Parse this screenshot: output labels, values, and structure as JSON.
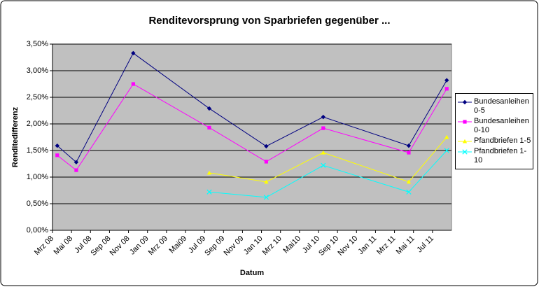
{
  "chart_data": {
    "type": "line",
    "title": "Renditevorsprung von Sparbriefen gegenüber ...",
    "x_label": "Datum",
    "y_label": "Renditedifferenz",
    "x": [
      "2008-03",
      "2008-05",
      "2008-11",
      "2009-07",
      "2010-01",
      "2010-07",
      "2011-04",
      "2011-08"
    ],
    "xlim": [
      "2008-03",
      "2011-09"
    ],
    "xticks": [
      {
        "value": "2008-03",
        "label": "Mrz 08"
      },
      {
        "value": "2008-05",
        "label": "Mai 08"
      },
      {
        "value": "2008-07",
        "label": "Jul 08"
      },
      {
        "value": "2008-09",
        "label": "Sep 08"
      },
      {
        "value": "2008-11",
        "label": "Nov 08"
      },
      {
        "value": "2009-01",
        "label": "Jan 09"
      },
      {
        "value": "2009-03",
        "label": "Mrz 09"
      },
      {
        "value": "2009-05",
        "label": "Mai09"
      },
      {
        "value": "2009-07",
        "label": "Jul 09"
      },
      {
        "value": "2009-09",
        "label": "Sep 09"
      },
      {
        "value": "2009-11",
        "label": "Nov 09"
      },
      {
        "value": "2010-01",
        "label": "Jan 10"
      },
      {
        "value": "2010-03",
        "label": "Mrz 10"
      },
      {
        "value": "2010-05",
        "label": "Mai10"
      },
      {
        "value": "2010-07",
        "label": "Jul 10"
      },
      {
        "value": "2010-09",
        "label": "Sep 10"
      },
      {
        "value": "2010-11",
        "label": "Nov 10"
      },
      {
        "value": "2011-01",
        "label": "Jan 11"
      },
      {
        "value": "2011-03",
        "label": "Mrz 11"
      },
      {
        "value": "2011-05",
        "label": "Mai 11"
      },
      {
        "value": "2011-07",
        "label": "Jul 11"
      }
    ],
    "ylim": [
      0,
      3.5
    ],
    "yticks": [
      {
        "value": 0,
        "label": "0,00%"
      },
      {
        "value": 0.5,
        "label": "0,50%"
      },
      {
        "value": 1,
        "label": "1,00%"
      },
      {
        "value": 1.5,
        "label": "1,50%"
      },
      {
        "value": 2,
        "label": "2,00%"
      },
      {
        "value": 2.5,
        "label": "2,50%"
      },
      {
        "value": 3,
        "label": "3,00%"
      },
      {
        "value": 3.5,
        "label": "3,50%"
      }
    ],
    "grid": true,
    "legend": "right",
    "series": [
      {
        "name": "Bundesanleihen 0-5",
        "color": "#000080",
        "marker": "diamond",
        "values": [
          1.59,
          1.28,
          3.33,
          2.29,
          1.58,
          2.13,
          1.59,
          2.82
        ]
      },
      {
        "name": "Bundesanleihen 0-10",
        "color": "#ff00ff",
        "marker": "square",
        "values": [
          1.41,
          1.13,
          2.75,
          1.93,
          1.29,
          1.92,
          1.46,
          2.66
        ]
      },
      {
        "name": "Pfandbriefen 1-5",
        "color": "#ffff00",
        "marker": "triangle",
        "values": [
          null,
          null,
          null,
          1.08,
          0.91,
          1.46,
          0.91,
          1.75
        ]
      },
      {
        "name": "Pfandbriefen 1-10",
        "color": "#00ffff",
        "marker": "x",
        "values": [
          null,
          null,
          null,
          0.72,
          0.62,
          1.22,
          0.72,
          1.5
        ]
      }
    ]
  }
}
